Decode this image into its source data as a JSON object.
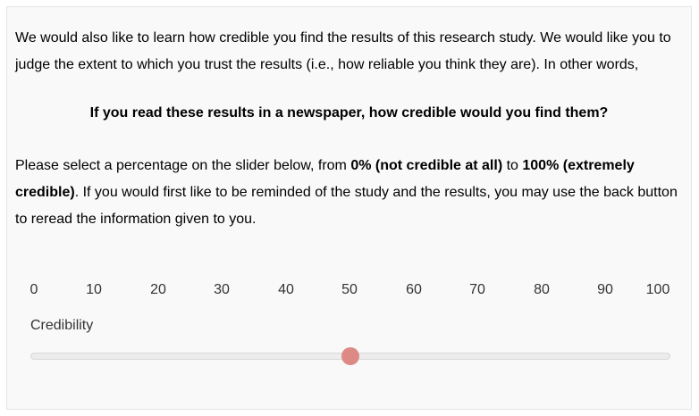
{
  "intro": {
    "text": "We would also like to learn how credible you find the results of this research study. We would like you to judge the extent to which you trust the results (i.e., how reliable you think they are). In other words,"
  },
  "question": {
    "text": "If you read these results in a newspaper, how credible would you find them?"
  },
  "instructions": {
    "part1": "Please select a percentage on the slider below, from ",
    "bold1": "0% (not credible at all)",
    "part2": " to ",
    "bold2": "100% (extremely credible)",
    "part3": ". If you would first like to be reminded of the study and the results, you may use the back button to reread the information given to you."
  },
  "slider": {
    "ticks": [
      "0",
      "10",
      "20",
      "30",
      "40",
      "50",
      "60",
      "70",
      "80",
      "90",
      "100"
    ],
    "label": "Credibility",
    "value": 50,
    "min": 0,
    "max": 100,
    "handle_color": "#dd8a84"
  }
}
